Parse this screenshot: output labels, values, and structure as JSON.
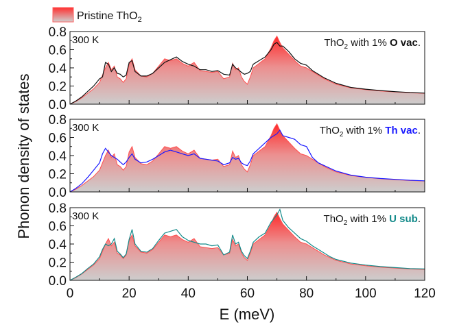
{
  "chart_data": [
    {
      "type": "area",
      "panel_label": "300 K",
      "title_prefix": "ThO",
      "title_sub": "2",
      "title_mid": " with 1% ",
      "title_bold": "O vac",
      "title_end": ".",
      "defect_color": "#111111",
      "xlim": [
        0,
        120
      ],
      "ylim": [
        0,
        0.8
      ],
      "x": [
        0,
        2,
        4,
        6,
        8,
        10,
        11,
        12,
        13,
        14,
        15,
        16,
        17,
        18,
        19,
        20,
        21,
        22,
        24,
        26,
        28,
        30,
        32,
        34,
        36,
        38,
        40,
        42,
        44,
        46,
        48,
        50,
        52,
        54,
        55,
        56,
        57,
        58,
        59,
        60,
        61,
        62,
        64,
        66,
        68,
        69,
        70,
        71,
        72,
        74,
        76,
        78,
        80,
        82,
        84,
        86,
        88,
        90,
        95,
        100,
        105,
        110,
        115,
        120
      ],
      "series": [
        {
          "values": [
            0,
            0.03,
            0.07,
            0.12,
            0.17,
            0.24,
            0.32,
            0.4,
            0.46,
            0.38,
            0.42,
            0.3,
            0.28,
            0.24,
            0.28,
            0.44,
            0.5,
            0.38,
            0.31,
            0.3,
            0.34,
            0.42,
            0.5,
            0.48,
            0.5,
            0.45,
            0.42,
            0.46,
            0.37,
            0.36,
            0.35,
            0.36,
            0.28,
            0.3,
            0.45,
            0.38,
            0.4,
            0.3,
            0.25,
            0.22,
            0.3,
            0.4,
            0.45,
            0.5,
            0.62,
            0.7,
            0.75,
            0.68,
            0.62,
            0.55,
            0.48,
            0.42,
            0.4,
            0.36,
            0.32,
            0.28,
            0.25,
            0.22,
            0.18,
            0.16,
            0.145,
            0.135,
            0.125,
            0.12
          ]
        },
        {
          "values": [
            0,
            0.035,
            0.08,
            0.14,
            0.2,
            0.28,
            0.3,
            0.46,
            0.44,
            0.36,
            0.4,
            0.34,
            0.33,
            0.3,
            0.32,
            0.46,
            0.48,
            0.36,
            0.31,
            0.31,
            0.34,
            0.4,
            0.46,
            0.49,
            0.52,
            0.47,
            0.44,
            0.42,
            0.38,
            0.38,
            0.36,
            0.37,
            0.33,
            0.32,
            0.44,
            0.4,
            0.38,
            0.35,
            0.33,
            0.34,
            0.36,
            0.44,
            0.48,
            0.52,
            0.6,
            0.66,
            0.68,
            0.64,
            0.64,
            0.58,
            0.5,
            0.45,
            0.43,
            0.37,
            0.33,
            0.29,
            0.26,
            0.23,
            0.185,
            0.165,
            0.15,
            0.138,
            0.128,
            0.122
          ]
        }
      ]
    },
    {
      "type": "area",
      "panel_label": "300 K",
      "title_prefix": "ThO",
      "title_sub": "2",
      "title_mid": " with 1% ",
      "title_bold": "Th vac",
      "title_end": ".",
      "defect_color": "#1a1aff",
      "xlim": [
        0,
        120
      ],
      "ylim": [
        0,
        0.8
      ],
      "x": [
        0,
        2,
        4,
        6,
        8,
        10,
        11,
        12,
        13,
        14,
        15,
        16,
        17,
        18,
        19,
        20,
        21,
        22,
        24,
        26,
        28,
        30,
        32,
        34,
        36,
        38,
        40,
        42,
        44,
        46,
        48,
        50,
        52,
        54,
        55,
        56,
        57,
        58,
        59,
        60,
        61,
        62,
        64,
        66,
        68,
        69,
        70,
        71,
        72,
        74,
        76,
        78,
        80,
        82,
        84,
        86,
        88,
        90,
        95,
        100,
        105,
        110,
        115,
        120
      ],
      "series": [
        {
          "values": [
            0,
            0.03,
            0.07,
            0.12,
            0.17,
            0.24,
            0.32,
            0.4,
            0.46,
            0.38,
            0.42,
            0.3,
            0.28,
            0.24,
            0.28,
            0.44,
            0.5,
            0.38,
            0.31,
            0.3,
            0.34,
            0.42,
            0.5,
            0.48,
            0.5,
            0.45,
            0.42,
            0.46,
            0.37,
            0.36,
            0.35,
            0.36,
            0.28,
            0.3,
            0.45,
            0.38,
            0.4,
            0.3,
            0.25,
            0.22,
            0.3,
            0.4,
            0.45,
            0.5,
            0.62,
            0.7,
            0.75,
            0.68,
            0.62,
            0.55,
            0.48,
            0.42,
            0.4,
            0.36,
            0.32,
            0.28,
            0.25,
            0.22,
            0.18,
            0.16,
            0.145,
            0.135,
            0.125,
            0.12
          ]
        },
        {
          "values": [
            0,
            0.04,
            0.09,
            0.16,
            0.24,
            0.32,
            0.42,
            0.48,
            0.44,
            0.4,
            0.38,
            0.36,
            0.33,
            0.3,
            0.33,
            0.38,
            0.42,
            0.36,
            0.32,
            0.33,
            0.36,
            0.4,
            0.44,
            0.46,
            0.44,
            0.42,
            0.4,
            0.42,
            0.37,
            0.36,
            0.35,
            0.34,
            0.3,
            0.32,
            0.38,
            0.36,
            0.37,
            0.32,
            0.3,
            0.29,
            0.34,
            0.42,
            0.48,
            0.54,
            0.6,
            0.62,
            0.64,
            0.68,
            0.62,
            0.6,
            0.58,
            0.52,
            0.5,
            0.38,
            0.32,
            0.29,
            0.26,
            0.23,
            0.185,
            0.162,
            0.148,
            0.138,
            0.128,
            0.122
          ]
        }
      ]
    },
    {
      "type": "area",
      "panel_label": "300 K",
      "title_prefix": "ThO",
      "title_sub": "2",
      "title_mid": " with 1% ",
      "title_bold": "U sub",
      "title_end": ".",
      "defect_color": "#138a8a",
      "xlim": [
        0,
        120
      ],
      "ylim": [
        0,
        0.8
      ],
      "x": [
        0,
        2,
        4,
        6,
        8,
        10,
        11,
        12,
        13,
        14,
        15,
        16,
        17,
        18,
        19,
        20,
        21,
        22,
        24,
        26,
        28,
        30,
        32,
        34,
        36,
        38,
        40,
        42,
        44,
        46,
        48,
        50,
        52,
        54,
        55,
        56,
        57,
        58,
        59,
        60,
        61,
        62,
        64,
        66,
        68,
        69,
        70,
        71,
        72,
        74,
        76,
        78,
        80,
        82,
        84,
        86,
        88,
        90,
        95,
        100,
        105,
        110,
        115,
        120
      ],
      "series": [
        {
          "values": [
            0,
            0.03,
            0.07,
            0.12,
            0.17,
            0.24,
            0.32,
            0.4,
            0.46,
            0.38,
            0.42,
            0.3,
            0.28,
            0.24,
            0.28,
            0.44,
            0.5,
            0.38,
            0.31,
            0.3,
            0.34,
            0.42,
            0.5,
            0.48,
            0.5,
            0.45,
            0.42,
            0.46,
            0.37,
            0.36,
            0.35,
            0.36,
            0.28,
            0.3,
            0.45,
            0.38,
            0.4,
            0.3,
            0.25,
            0.22,
            0.3,
            0.4,
            0.45,
            0.5,
            0.62,
            0.7,
            0.75,
            0.68,
            0.62,
            0.55,
            0.48,
            0.42,
            0.4,
            0.36,
            0.32,
            0.28,
            0.25,
            0.22,
            0.18,
            0.16,
            0.145,
            0.135,
            0.125,
            0.12
          ]
        },
        {
          "values": [
            0,
            0.035,
            0.075,
            0.13,
            0.18,
            0.26,
            0.34,
            0.4,
            0.38,
            0.4,
            0.46,
            0.32,
            0.29,
            0.25,
            0.29,
            0.45,
            0.56,
            0.4,
            0.32,
            0.31,
            0.35,
            0.44,
            0.52,
            0.54,
            0.56,
            0.48,
            0.44,
            0.42,
            0.4,
            0.4,
            0.38,
            0.39,
            0.28,
            0.31,
            0.5,
            0.4,
            0.42,
            0.32,
            0.27,
            0.24,
            0.32,
            0.42,
            0.48,
            0.52,
            0.64,
            0.68,
            0.72,
            0.78,
            0.66,
            0.58,
            0.52,
            0.46,
            0.43,
            0.38,
            0.34,
            0.3,
            0.26,
            0.23,
            0.19,
            0.168,
            0.152,
            0.14,
            0.13,
            0.125
          ]
        }
      ]
    }
  ],
  "legend": {
    "label_prefix": "Pristine ThO",
    "label_sub": "2"
  },
  "ylabel": "Phonon density of states",
  "xlabel": "E (meV)",
  "x_ticks": [
    "0",
    "20",
    "40",
    "60",
    "80",
    "100",
    "120"
  ],
  "y_ticks": [
    "0.0",
    "0.2",
    "0.4",
    "0.6",
    "0.8"
  ],
  "pristine_colors": {
    "top": "#ff2a2a",
    "bottom": "#cfcfcf",
    "line": "#ff5050"
  }
}
